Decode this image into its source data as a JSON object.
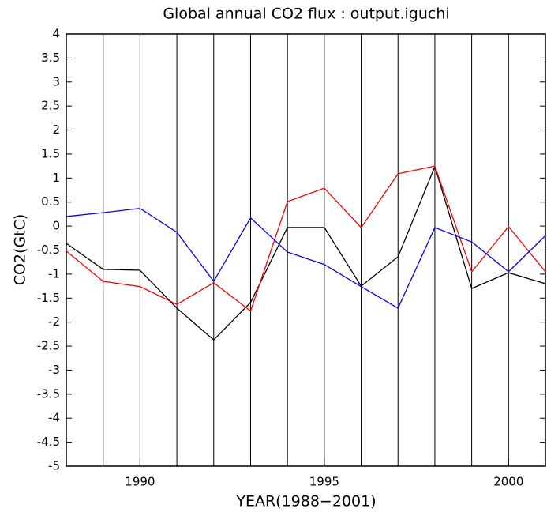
{
  "chart_data": {
    "type": "line",
    "title": "Global annual CO2 flux : output.iguchi",
    "x_label": "YEAR(1988−2001)",
    "y_label": "CO2(GtC)",
    "x": [
      1988,
      1989,
      1990,
      1991,
      1992,
      1993,
      1994,
      1995,
      1996,
      1997,
      1998,
      1999,
      2000,
      2001
    ],
    "series": [
      {
        "color": "#000000",
        "values": [
          -0.36,
          -0.9,
          -0.92,
          -1.71,
          -2.37,
          -1.59,
          -0.03,
          -0.03,
          -1.25,
          -0.64,
          1.24,
          -1.3,
          -0.97,
          -1.2
        ]
      },
      {
        "color": "#ff0000",
        "values": [
          -0.52,
          -1.15,
          -1.26,
          -1.63,
          -1.18,
          -1.77,
          0.51,
          0.79,
          -0.03,
          1.09,
          1.25,
          -0.95,
          -0.01,
          -0.95
        ]
      },
      {
        "color": "#0000ff",
        "values": [
          0.2,
          0.28,
          0.37,
          -0.13,
          -1.15,
          0.17,
          -0.54,
          -0.8,
          -1.26,
          -1.71,
          -0.03,
          -0.33,
          -0.95,
          -0.2
        ]
      }
    ],
    "xlim": [
      1988,
      2001
    ],
    "xticks": [
      1990,
      1995,
      2000
    ],
    "xgrid": [
      1989,
      1990,
      1991,
      1992,
      1993,
      1994,
      1995,
      1996,
      1997,
      1998,
      1999,
      2000
    ],
    "ylim": [
      -5,
      4
    ],
    "yticks": [
      -5,
      -4.5,
      -4,
      -3.5,
      -3,
      -2.5,
      -2,
      -1.5,
      -1,
      -0.5,
      0,
      0.5,
      1,
      1.5,
      2,
      2.5,
      3,
      3.5,
      4
    ]
  }
}
